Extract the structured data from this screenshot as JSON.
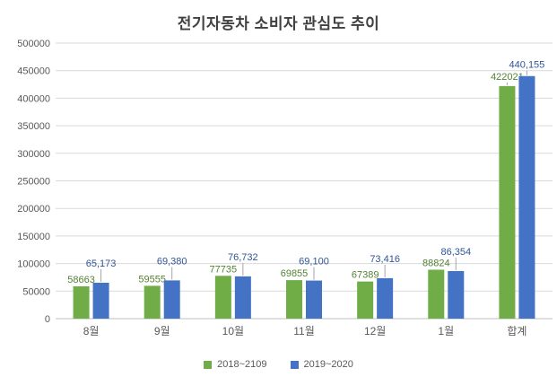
{
  "title": "전기자동차 소비자 관심도 추이",
  "legend": {
    "items": [
      "2018~2109",
      "2019~2020"
    ]
  },
  "chart_data": {
    "type": "bar",
    "title": "전기자동차 소비자 관심도 추이",
    "categories": [
      "8월",
      "9월",
      "10월",
      "11월",
      "12월",
      "1월",
      "합계"
    ],
    "series": [
      {
        "name": "2018~2109",
        "color": "#70AD47",
        "label_color": "#548235",
        "values": [
          58663,
          59555,
          77735,
          69855,
          67389,
          88824,
          422021
        ],
        "data_labels": [
          "58663",
          "59555",
          "77735",
          "69855",
          "67389",
          "88824",
          "422021"
        ]
      },
      {
        "name": "2019~2020",
        "color": "#4472C4",
        "label_color": "#2F5597",
        "values": [
          65173,
          69380,
          76732,
          69100,
          73416,
          86354,
          440155
        ],
        "data_labels": [
          "65,173",
          "69,380",
          "76,732",
          "69,100",
          "73,416",
          "86,354",
          "440,155"
        ]
      }
    ],
    "ylim": [
      0,
      500000
    ],
    "ytick_step": 50000,
    "ytick_labels": [
      "0",
      "50000",
      "100000",
      "150000",
      "200000",
      "250000",
      "300000",
      "350000",
      "400000",
      "450000",
      "500000"
    ],
    "grid": true,
    "legend_position": "bottom",
    "xlabel": "",
    "ylabel": ""
  },
  "colors": {
    "grid_line": "#D9D9D9",
    "axis_line": "#BFBFBF",
    "tick_text": "#595959",
    "title_text": "#404040",
    "leader_line": "#A6A6A6",
    "background": "#FFFFFF"
  }
}
